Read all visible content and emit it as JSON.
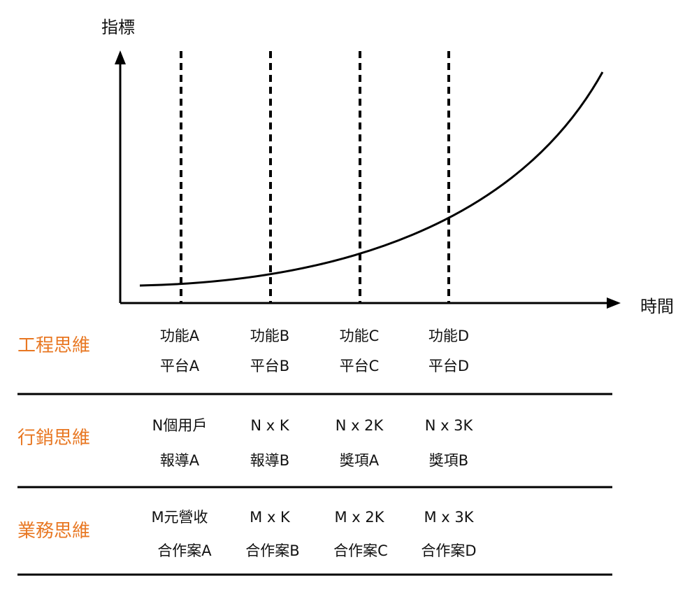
{
  "axes": {
    "y_label": "指標",
    "x_label": "時間"
  },
  "accent_color": "#E87722",
  "rows": [
    {
      "label": "工程思維",
      "line1": [
        "功能A",
        "功能B",
        "功能C",
        "功能D"
      ],
      "line2": [
        "平台A",
        "平台B",
        "平台C",
        "平台D"
      ]
    },
    {
      "label": "行銷思維",
      "line1": [
        "N個用戶",
        "N x K",
        "N x 2K",
        "N x 3K"
      ],
      "line2": [
        "報導A",
        "報導B",
        "獎項A",
        "獎項B"
      ]
    },
    {
      "label": "業務思維",
      "line1": [
        "M元營收",
        "M x K",
        "M x 2K",
        "M x 3K"
      ],
      "line2": [
        "合作案A",
        "合作案B",
        "合作案C",
        "合作案D"
      ]
    }
  ]
}
